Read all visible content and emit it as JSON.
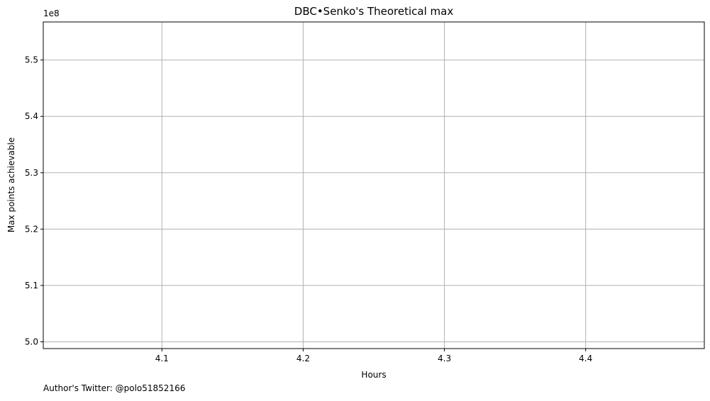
{
  "chart_data": {
    "type": "line",
    "title": "DBC•Senko's Theoretical max",
    "xlabel": "Hours",
    "ylabel": "Max points achievable",
    "y_offset_label": "1e8",
    "footnote": "Author's Twitter: @polo51852166",
    "xlim": [
      4.016,
      4.484
    ],
    "ylim": [
      4.988,
      5.5675
    ],
    "x_ticks": [
      4.1,
      4.2,
      4.3,
      4.4
    ],
    "x_tick_labels": [
      "4.1",
      "4.2",
      "4.3",
      "4.4"
    ],
    "y_ticks": [
      5.0,
      5.1,
      5.2,
      5.3,
      5.4,
      5.5
    ],
    "y_tick_labels": [
      "5.0",
      "5.1",
      "5.2",
      "5.3",
      "5.4",
      "5.5"
    ],
    "grid": true,
    "series": []
  }
}
